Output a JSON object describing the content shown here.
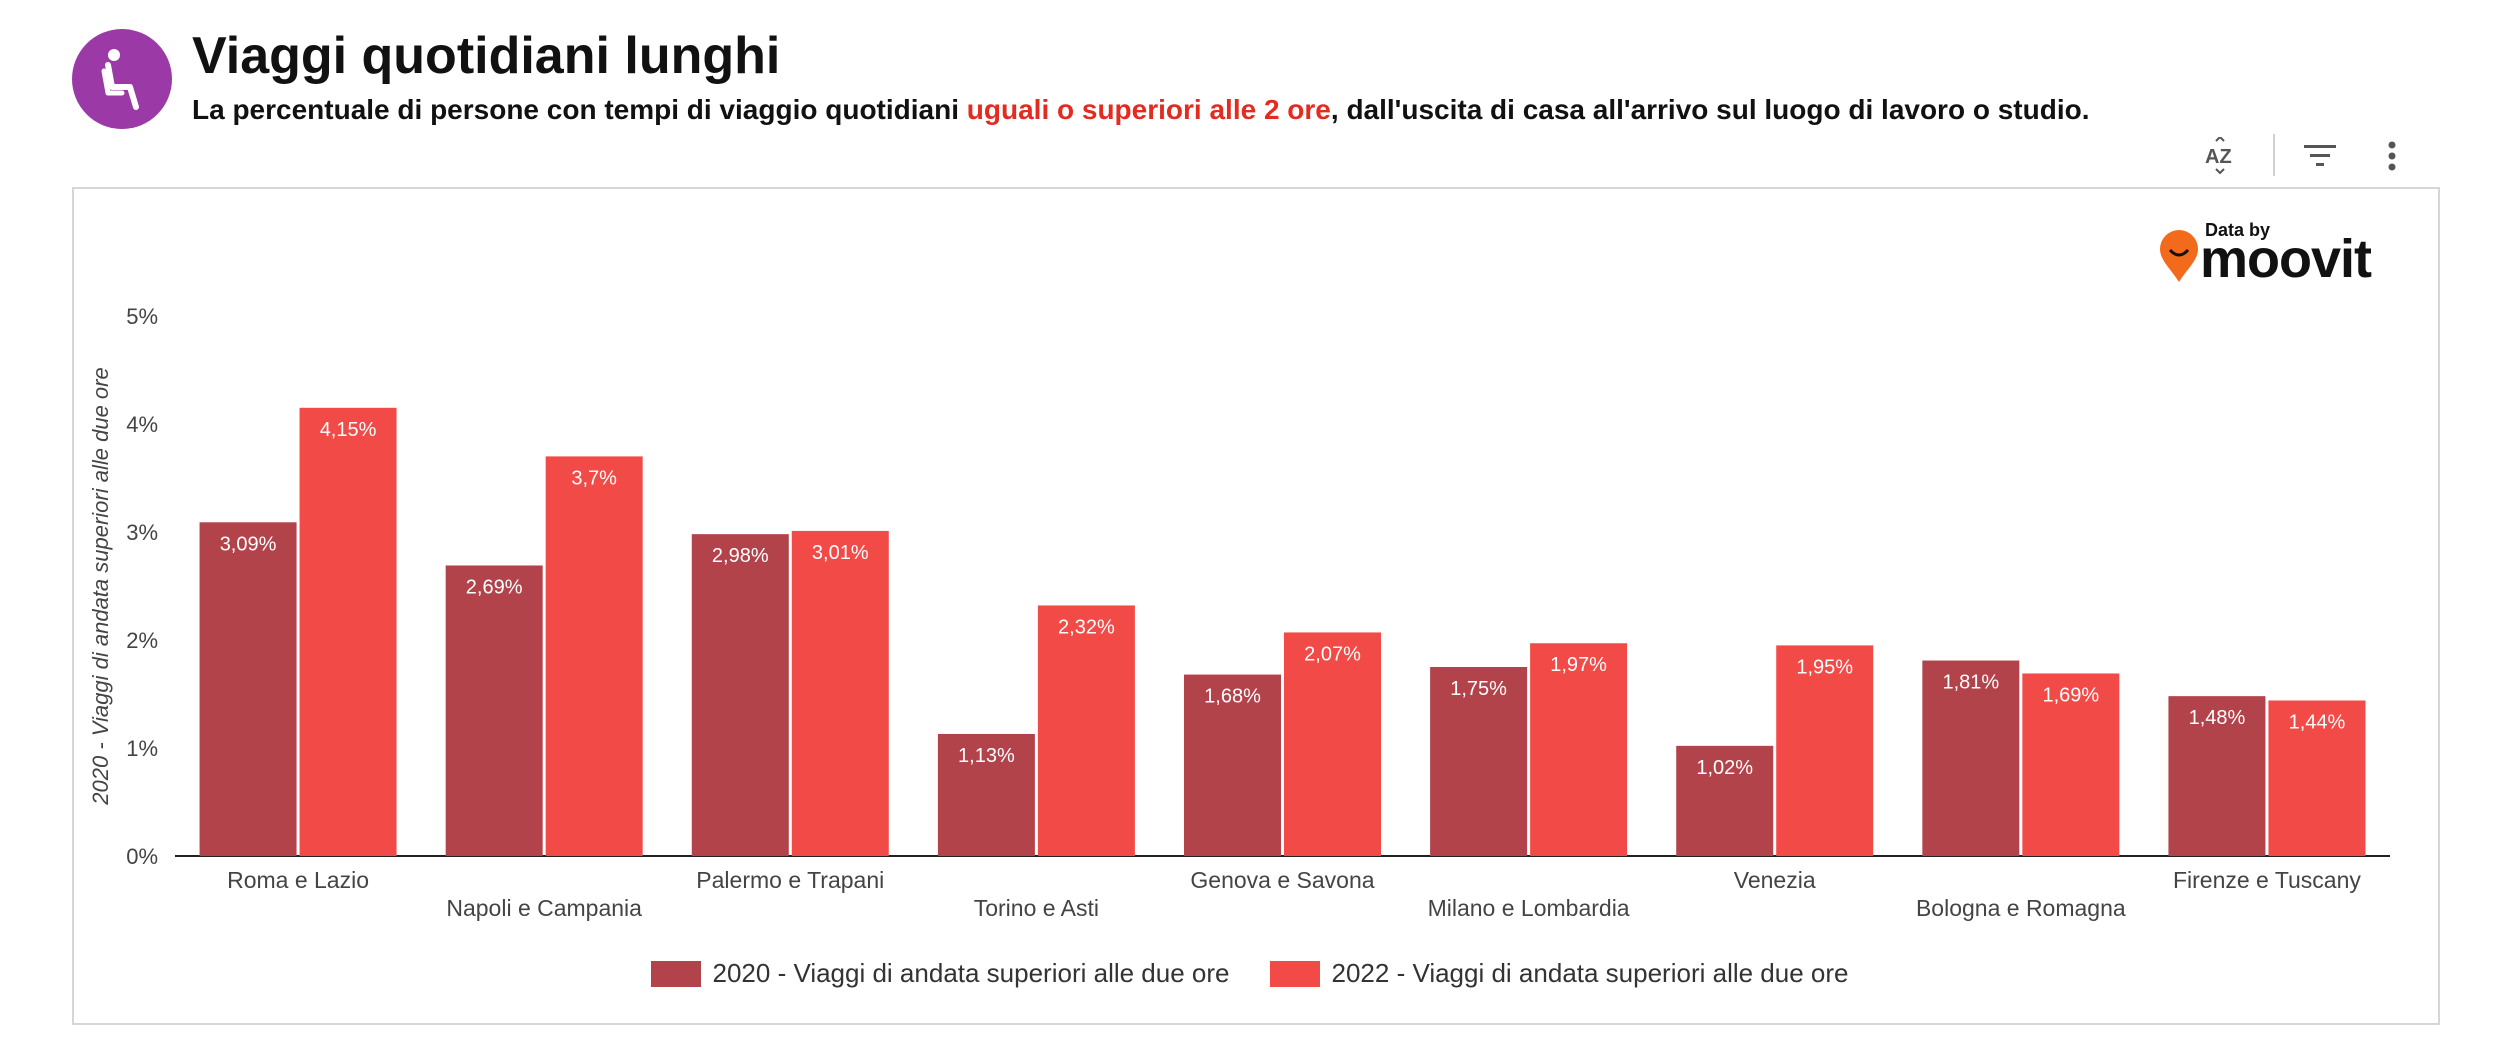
{
  "header": {
    "title": "Viaggi quotidiani lunghi",
    "subtitle_before": "La percentuale di persone con tempi di viaggio quotidiani ",
    "subtitle_highlight": "uguali o superiori alle 2 ore",
    "subtitle_after": ", dall'uscita di casa all'arrivo sul luogo di lavoro o studio.",
    "icon": "seated-person-icon",
    "icon_color": "#9b3aa6",
    "highlight_color": "#e32b1f"
  },
  "toolbar": {
    "sort_icon": "sort-az-icon",
    "filter_icon": "filter-icon",
    "more_icon": "more-vertical-icon"
  },
  "logo": {
    "prefix": "Data by",
    "brand": "moovit",
    "pin_color": "#f26b1d"
  },
  "chart_data": {
    "type": "bar",
    "ylabel": "2020 - Viaggi di andata superiori alle due ore",
    "ylim": [
      0,
      5
    ],
    "yticks": [
      "0%",
      "1%",
      "2%",
      "3%",
      "4%",
      "5%"
    ],
    "grid": false,
    "legend_position": "bottom",
    "categories": [
      "Roma e Lazio",
      "Napoli e Campania",
      "Palermo e Trapani",
      "Torino e Asti",
      "Genova e Savona",
      "Milano e Lombardia",
      "Venezia",
      "Bologna e Romagna",
      "Firenze e Tuscany"
    ],
    "series": [
      {
        "name": "2020 - Viaggi di andata superiori alle due ore",
        "color": "#b3434b",
        "values": [
          3.09,
          2.69,
          2.98,
          1.13,
          1.68,
          1.75,
          1.02,
          1.81,
          1.48
        ],
        "labels": [
          "3,09%",
          "2,69%",
          "2,98%",
          "1,13%",
          "1,68%",
          "1,75%",
          "1,02%",
          "1,81%",
          "1,48%"
        ]
      },
      {
        "name": "2022 - Viaggi di andata superiori alle due ore",
        "color": "#f24b47",
        "values": [
          4.15,
          3.7,
          3.01,
          2.32,
          2.07,
          1.97,
          1.95,
          1.69,
          1.44
        ],
        "labels": [
          "4,15%",
          "3,7%",
          "3,01%",
          "2,32%",
          "2,07%",
          "1,97%",
          "1,95%",
          "1,69%",
          "1,44%"
        ]
      }
    ]
  }
}
